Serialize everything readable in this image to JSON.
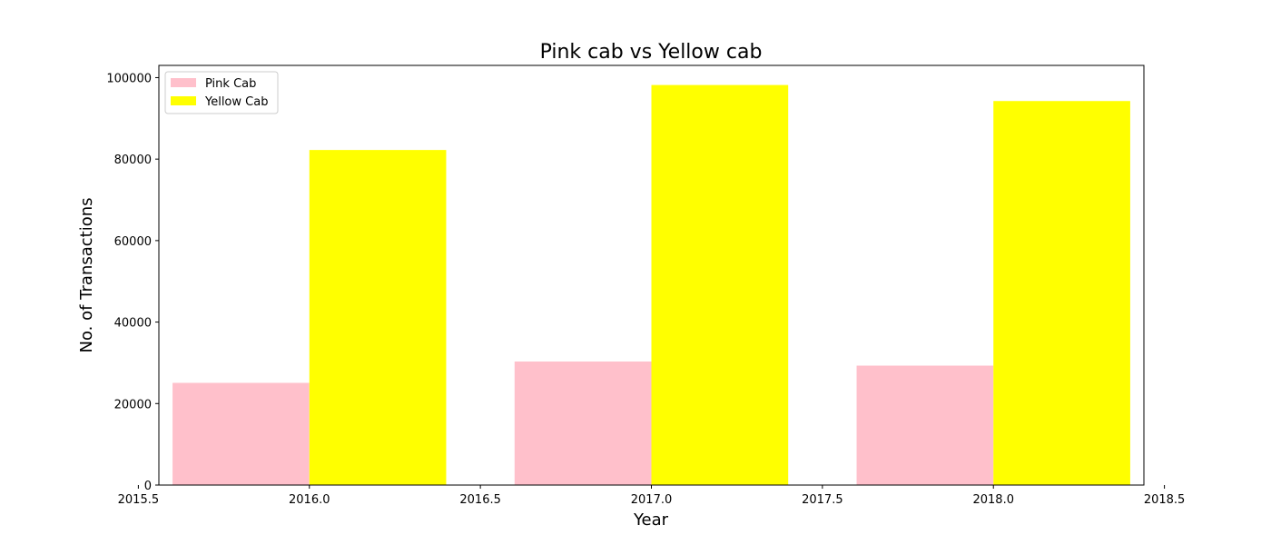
{
  "chart_data": {
    "type": "bar",
    "title": "Pink cab vs Yellow cab",
    "xlabel": "Year",
    "ylabel": "No. of Transactions",
    "x": [
      2016,
      2017,
      2018
    ],
    "series": [
      {
        "name": "Pink Cab",
        "color": "#ffc0cb",
        "values": [
          25080,
          30321,
          29310
        ]
      },
      {
        "name": "Yellow Cab",
        "color": "#ffff00",
        "values": [
          82239,
          98189,
          94253
        ]
      }
    ],
    "xlim": [
      2015.56,
      2018.44
    ],
    "ylim": [
      0,
      103000
    ],
    "xticks": [
      2015.5,
      2016.0,
      2016.5,
      2017.0,
      2017.5,
      2018.0,
      2018.5
    ],
    "xtick_labels": [
      "2015.5",
      "2016.0",
      "2016.5",
      "2017.0",
      "2017.5",
      "2018.0",
      "2018.5"
    ],
    "yticks": [
      0,
      20000,
      40000,
      60000,
      80000,
      100000
    ],
    "ytick_labels": [
      "0",
      "20000",
      "40000",
      "60000",
      "80000",
      "100000"
    ],
    "bar_width": 0.4,
    "grid": false,
    "legend_position": "top-left"
  }
}
